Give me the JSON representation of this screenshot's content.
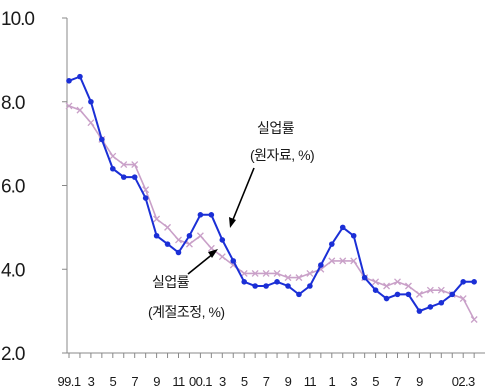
{
  "chart_data": {
    "type": "line",
    "ylim": [
      2.0,
      10.0
    ],
    "yticks": [
      "10.0",
      "8.0",
      "6.0",
      "4.0",
      "2.0"
    ],
    "ytick_values": [
      10,
      8,
      6,
      4,
      2
    ],
    "grid": false,
    "legend": "none",
    "x_tick_labels": [
      {
        "i": 0,
        "text": "99.1"
      },
      {
        "i": 2,
        "text": "3"
      },
      {
        "i": 4,
        "text": "5"
      },
      {
        "i": 6,
        "text": "7"
      },
      {
        "i": 8,
        "text": "9"
      },
      {
        "i": 10,
        "text": "11"
      },
      {
        "i": 12,
        "text": "00.1"
      },
      {
        "i": 14,
        "text": "3"
      },
      {
        "i": 16,
        "text": "5"
      },
      {
        "i": 18,
        "text": "7"
      },
      {
        "i": 20,
        "text": "9"
      },
      {
        "i": 22,
        "text": "11"
      },
      {
        "i": 24,
        "text": "1"
      },
      {
        "i": 26,
        "text": "3"
      },
      {
        "i": 28,
        "text": "5"
      },
      {
        "i": 30,
        "text": "7"
      },
      {
        "i": 32,
        "text": "9"
      },
      {
        "i": 36,
        "text": "02.3"
      }
    ],
    "series": [
      {
        "name": "실업률 (원자료, %)",
        "color": "#1b2fd6",
        "marker": "dot",
        "values": [
          8.5,
          8.6,
          8.0,
          7.1,
          6.4,
          6.2,
          6.2,
          5.7,
          4.8,
          4.6,
          4.4,
          4.8,
          5.3,
          5.3,
          4.7,
          4.2,
          3.7,
          3.6,
          3.6,
          3.7,
          3.6,
          3.4,
          3.6,
          4.1,
          4.6,
          5.0,
          4.8,
          3.8,
          3.5,
          3.3,
          3.4,
          3.4,
          3.0,
          3.1,
          3.2,
          3.4,
          3.7,
          3.7
        ]
      },
      {
        "name": "실업률 (계절조정, %)",
        "color": "#c9a0c8",
        "marker": "x",
        "values": [
          7.9,
          7.8,
          7.5,
          7.1,
          6.7,
          6.5,
          6.5,
          5.9,
          5.2,
          5.0,
          4.7,
          4.6,
          4.8,
          4.5,
          4.3,
          4.1,
          3.9,
          3.9,
          3.9,
          3.9,
          3.8,
          3.8,
          3.9,
          4.0,
          4.2,
          4.2,
          4.2,
          3.8,
          3.7,
          3.6,
          3.7,
          3.6,
          3.4,
          3.5,
          3.5,
          3.4,
          3.3,
          2.8
        ]
      }
    ],
    "annotations": [
      {
        "target": "raw",
        "line1": "실업률",
        "line2": "(원자료, %)"
      },
      {
        "target": "seasonal",
        "line1": "실업률",
        "line2": "(계절조정, %)"
      }
    ]
  }
}
